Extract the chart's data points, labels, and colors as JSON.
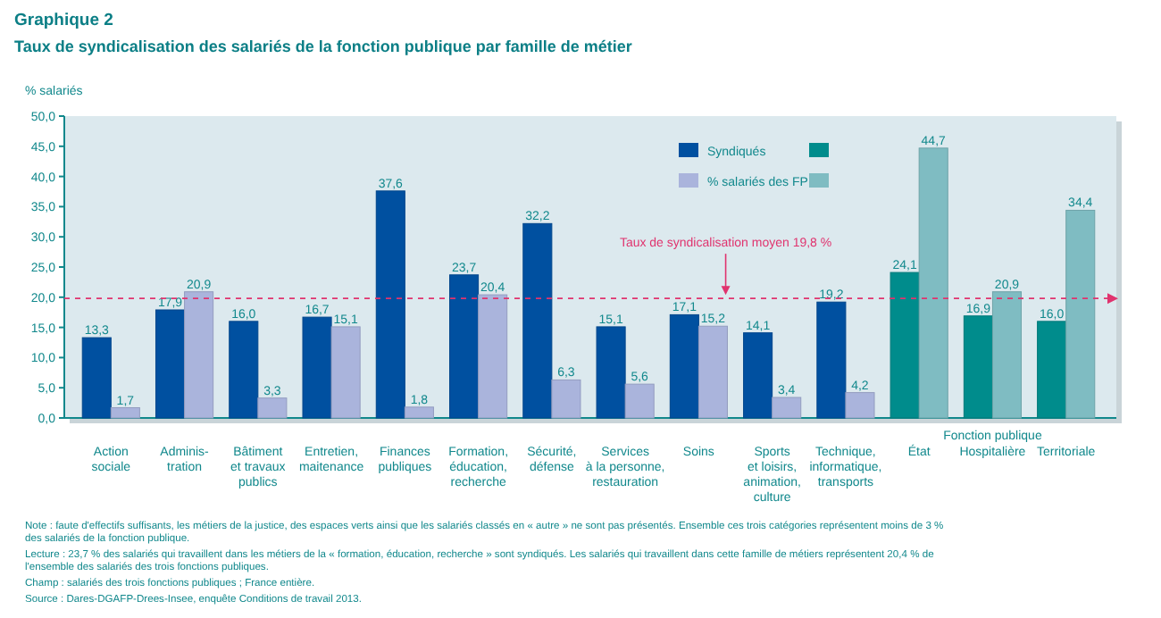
{
  "chart_data": {
    "type": "bar",
    "title": "Graphique 2",
    "subtitle": "Taux de syndicalisation des salariés de la fonction publique par famille de métier",
    "ylabel": "% salariés",
    "categories": [
      "Action\nsociale",
      "Adminis-\ntration",
      "Bâtiment\net travaux\npublics",
      "Entretien,\nmaitenance",
      "Finances\npubliques",
      "Formation,\néducation,\nrecherche",
      "Sécurité,\ndéfense",
      "Services\nà la personne,\nrestauration",
      "Soins",
      "Sports\net loisirs,\nanimation,\nculture",
      "Technique,\ninformatique,\ntransports",
      "État",
      "Hospitalière",
      "Territoriale"
    ],
    "series": [
      {
        "name": "Syndiqués",
        "colors": [
          "#0050a0",
          "#0050a0",
          "#0050a0",
          "#0050a0",
          "#0050a0",
          "#0050a0",
          "#0050a0",
          "#0050a0",
          "#0050a0",
          "#0050a0",
          "#0050a0",
          "#008c8c",
          "#008c8c",
          "#008c8c"
        ],
        "values": [
          13.3,
          17.9,
          16.0,
          16.7,
          37.6,
          23.7,
          32.2,
          15.1,
          17.1,
          14.1,
          19.2,
          24.1,
          16.9,
          16.0
        ],
        "value_labels": [
          "13,3",
          "17,9",
          "16,0",
          "16,7",
          "37,6",
          "23,7",
          "32,2",
          "15,1",
          "17,1",
          "14,1",
          "19,2",
          "24,1",
          "16,9",
          "16,0"
        ]
      },
      {
        "name": "% salariés des FP",
        "colors": [
          "#aab4dc",
          "#aab4dc",
          "#aab4dc",
          "#aab4dc",
          "#aab4dc",
          "#aab4dc",
          "#aab4dc",
          "#aab4dc",
          "#aab4dc",
          "#aab4dc",
          "#aab4dc",
          "#7fbcc2",
          "#7fbcc2",
          "#7fbcc2"
        ],
        "values": [
          1.7,
          20.9,
          3.3,
          15.1,
          1.8,
          20.4,
          6.3,
          5.6,
          15.2,
          3.4,
          4.2,
          44.7,
          20.9,
          34.4
        ],
        "value_labels": [
          "1,7",
          "20,9",
          "3,3",
          "15,1",
          "1,8",
          "20,4",
          "6,3",
          "5,6",
          "15,2",
          "3,4",
          "4,2",
          "44,7",
          "20,9",
          "34,4"
        ]
      }
    ],
    "ylim": [
      0,
      50
    ],
    "yticks": [
      {
        "value": 0,
        "label": "0,0"
      },
      {
        "value": 5,
        "label": "5,0"
      },
      {
        "value": 10,
        "label": "10,0"
      },
      {
        "value": 15,
        "label": "15,0"
      },
      {
        "value": 20,
        "label": "20,0"
      },
      {
        "value": 25,
        "label": "25,0"
      },
      {
        "value": 30,
        "label": "30,0"
      },
      {
        "value": 35,
        "label": "35,0"
      },
      {
        "value": 40,
        "label": "40,0"
      },
      {
        "value": 45,
        "label": "45,0"
      },
      {
        "value": 50,
        "label": "50,0"
      }
    ],
    "grid": false,
    "legend": "top right",
    "ref_lines": [
      {
        "axis": "y",
        "value": 19.8,
        "label": "Taux de syndicalisation moyen 19,8 %",
        "color": "#e0336e",
        "line_style": "dashed"
      }
    ],
    "annotations": [
      "Fonction publique",
      "Note : faute d'effectifs suffisants, les métiers de la justice, des espaces verts ainsi que les salariés classés en « autre » ne sont pas présentés. Ensemble ces trois catégories représentent moins de 3 % des salariés de la fonction publique.",
      "Lecture : 23,7 % des salariés qui travaillent dans les métiers de la « formation, éducation, recherche » sont syndiqués. Les salariés qui travaillent dans cette famille de métiers représentent 20,4 % de l'ensemble des salariés des trois fonctions publiques.",
      "Champ : salariés des trois fonctions publiques ; France entière.",
      "Source : Dares-DGAFP-Drees-Insee, enquête Conditions de travail 2013."
    ]
  }
}
